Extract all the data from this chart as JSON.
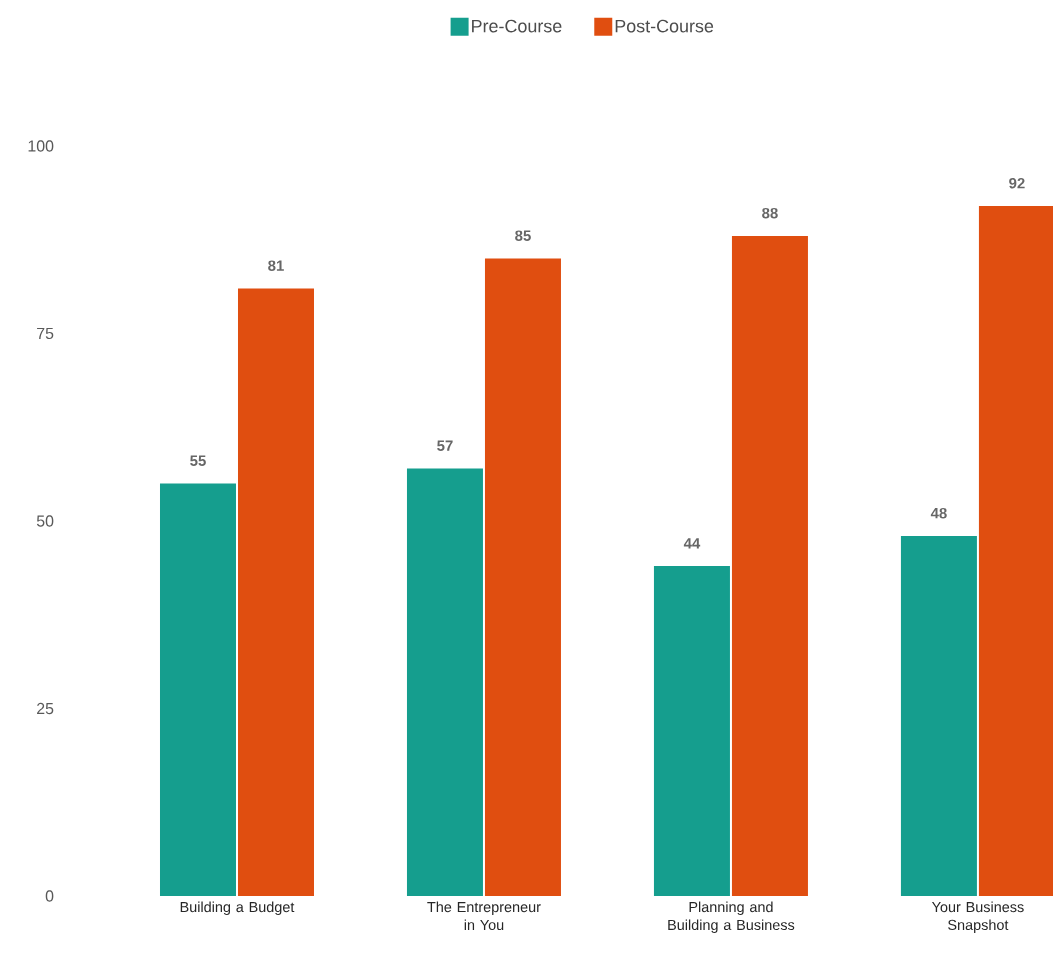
{
  "chart_data": {
    "type": "bar",
    "categories": [
      "Building a Budget",
      "The Entrepreneur in You",
      "Planning and Building a Business",
      "Your Business Snapshot"
    ],
    "series": [
      {
        "name": "Pre-Course",
        "color": "#159e8e",
        "values": [
          55,
          57,
          44,
          48
        ]
      },
      {
        "name": "Post-Course",
        "color": "#e04e10",
        "values": [
          81,
          85,
          88,
          92
        ]
      }
    ],
    "ylim": [
      0,
      100
    ],
    "yticks": [
      0,
      25,
      50,
      75,
      100
    ],
    "grid": false,
    "legend": "top",
    "data_labels": true
  }
}
